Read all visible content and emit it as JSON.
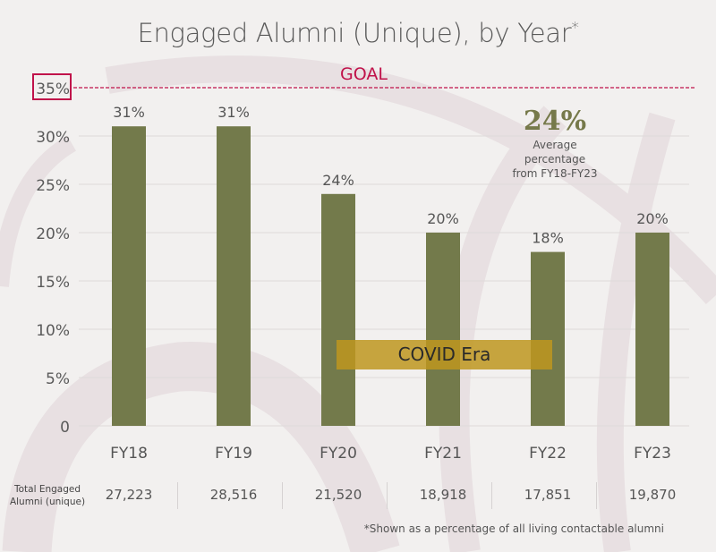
{
  "chart_data": {
    "type": "bar",
    "title": "Engaged Alumni (Unique), by Year",
    "title_marker": "*",
    "categories": [
      "FY18",
      "FY19",
      "FY20",
      "FY21",
      "FY22",
      "FY23"
    ],
    "values": [
      31,
      31,
      24,
      20,
      18,
      20
    ],
    "data_labels": [
      "31%",
      "31%",
      "24%",
      "20%",
      "18%",
      "20%"
    ],
    "ylim": [
      0,
      35
    ],
    "yticks": [
      0,
      5,
      10,
      15,
      20,
      25,
      30,
      35
    ],
    "ytick_labels": [
      "0",
      "5%",
      "10%",
      "15%",
      "20%",
      "25%",
      "30%",
      "35%"
    ],
    "grid": true,
    "bar_color": "#737a4b",
    "goal": {
      "value": 35,
      "label": "GOAL",
      "color": "#c0124a"
    },
    "average": {
      "value": "24%",
      "text_line1": "Average percentage",
      "text_line2": "from FY18-FY23"
    },
    "annotation": {
      "label": "COVID Era",
      "color": "#be961e"
    }
  },
  "table": {
    "row_label_line1": "Total Engaged",
    "row_label_line2": "Alumni (unique)",
    "totals": [
      "27,223",
      "28,516",
      "21,520",
      "18,918",
      "17,851",
      "19,870"
    ]
  },
  "footnote": "*Shown as a percentage of all living contactable alumni"
}
